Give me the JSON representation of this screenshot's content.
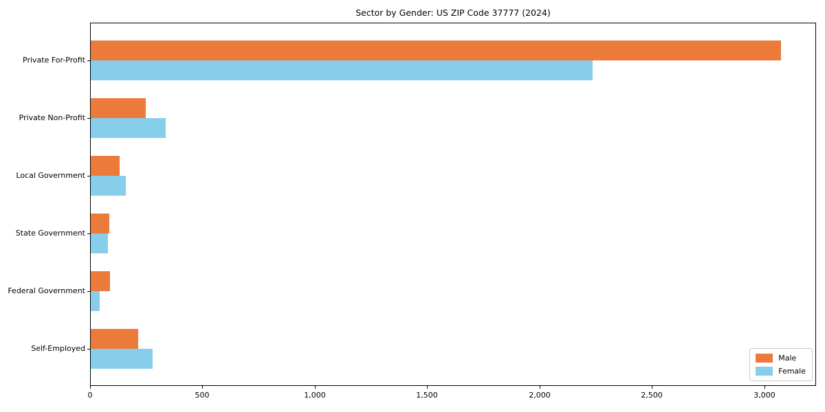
{
  "figure": {
    "title": "Sector by Gender: US ZIP Code 37777 (2024)"
  },
  "chart_data": {
    "type": "bar",
    "orientation": "horizontal",
    "title": "Sector by Gender: US ZIP Code 37777 (2024)",
    "categories": [
      "Private For-Profit",
      "Private Non-Profit",
      "Local Government",
      "State Government",
      "Federal Government",
      "Self-Employed"
    ],
    "series": [
      {
        "name": "Male",
        "color": "#EB7A3B",
        "values": [
          3070,
          245,
          128,
          84,
          87,
          211
        ]
      },
      {
        "name": "Female",
        "color": "#87CEEB",
        "values": [
          2232,
          333,
          156,
          76,
          40,
          275
        ]
      }
    ],
    "xlabel": "",
    "ylabel": "",
    "xlim": [
      0,
      3230
    ],
    "xticks": [
      0,
      500,
      1000,
      1500,
      2000,
      2500,
      3000
    ],
    "xtick_labels": [
      "0",
      "500",
      "1,000",
      "1,500",
      "2,000",
      "2,500",
      "3,000"
    ],
    "grid": false,
    "background": "#ffffff",
    "legend": {
      "position": "lower right",
      "entries": [
        "Male",
        "Female"
      ]
    }
  }
}
